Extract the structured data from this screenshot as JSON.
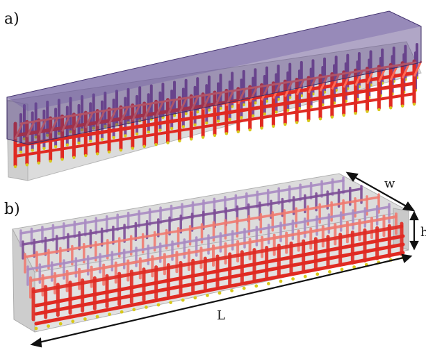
{
  "figure": {
    "panel_a_label": "a)",
    "panel_b_label": "b)",
    "dimension_w": "w",
    "dimension_h": "h",
    "dimension_L": "L",
    "colors": {
      "beam_front": "#e02a22",
      "beam_top": "#ff6a55",
      "beam_purple": "#7c4c96",
      "beam_pink": "#f07a70",
      "beam_lilac": "#a88bc2",
      "tip_yellow": "#d8c81a",
      "slab_gray": "#d8d8d8",
      "cap_purple": "#4f3a80",
      "arrow": "#111111"
    }
  }
}
